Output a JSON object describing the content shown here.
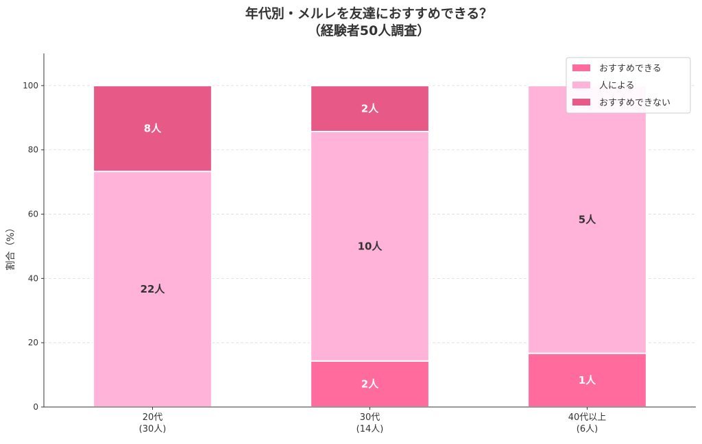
{
  "chart_data": {
    "type": "bar",
    "stacked": true,
    "title": [
      "年代別・メルレを友達におすすめできる？",
      "（経験者50人調査）"
    ],
    "ylabel": "割合（%）",
    "xlabel": "",
    "ylim": [
      0,
      110
    ],
    "yticks": [
      0,
      20,
      40,
      60,
      80,
      100
    ],
    "grid": true,
    "legend_position": "top-right",
    "categories": [
      [
        "20代",
        "(30人)"
      ],
      [
        "30代",
        "(14人)"
      ],
      [
        "40代以上",
        "(6人)"
      ]
    ],
    "series": [
      {
        "name": "おすすめできる",
        "color": "#ff6b9d",
        "values": [
          0,
          14.3,
          16.7
        ],
        "labels": [
          "",
          "2人",
          "1人"
        ],
        "label_color": "#ffffff"
      },
      {
        "name": "人による",
        "color": "#ffb3d9",
        "values": [
          73.3,
          71.4,
          83.3
        ],
        "labels": [
          "22人",
          "10人",
          "5人"
        ],
        "label_color": "#333333"
      },
      {
        "name": "おすすめできない",
        "color": "#e75a87",
        "values": [
          26.7,
          14.3,
          0
        ],
        "labels": [
          "8人",
          "2人",
          ""
        ],
        "label_color": "#ffffff"
      }
    ]
  }
}
